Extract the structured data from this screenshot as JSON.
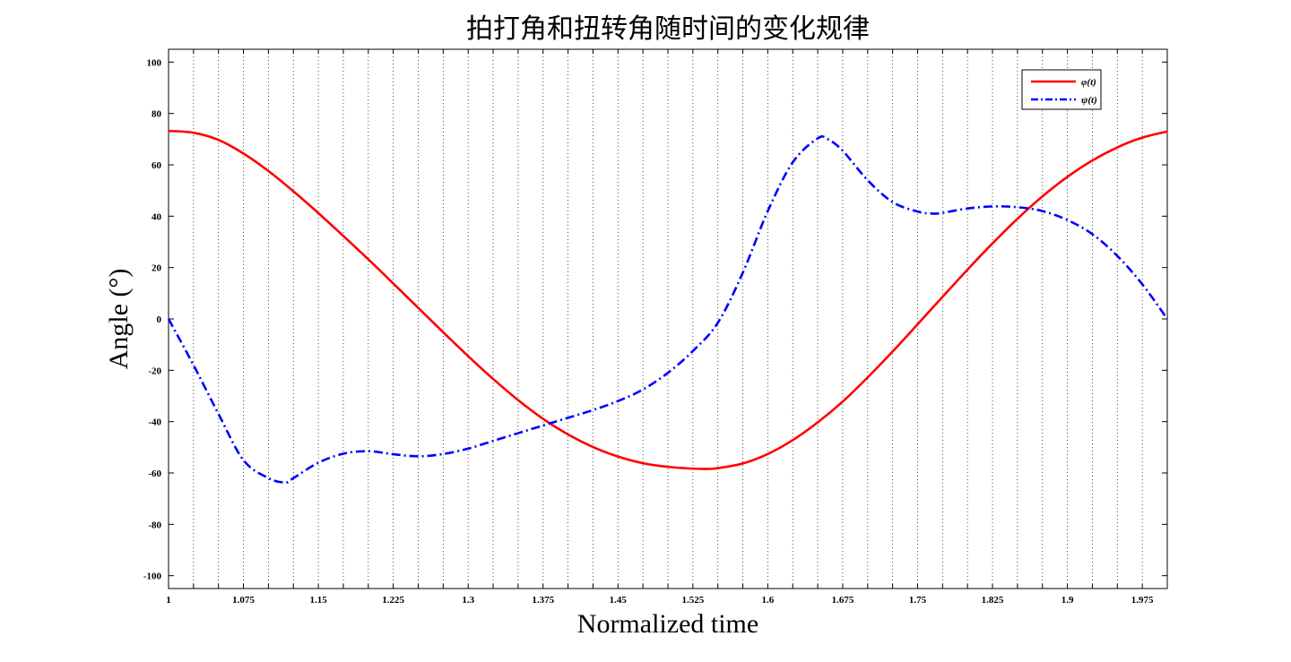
{
  "chart_data": {
    "type": "line",
    "title": "拍打角和扭转角随时间的变化规律",
    "xlabel": "Normalized time",
    "ylabel": "Angle (°)",
    "xlim": [
      1,
      2
    ],
    "ylim": [
      -105,
      105
    ],
    "x_ticks": [
      "1",
      "1.075",
      "1.15",
      "1.225",
      "1.3",
      "1.375",
      "1.45",
      "1.525",
      "1.6",
      "1.675",
      "1.75",
      "1.825",
      "1.9",
      "1.975"
    ],
    "y_ticks": [
      "100",
      "80",
      "60",
      "40",
      "20",
      "0",
      "-20",
      "-40",
      "-60",
      "-80",
      "-100"
    ],
    "grid": {
      "x": true,
      "y": false,
      "style": "dotted",
      "minor_x_step": 0.025
    },
    "legend": {
      "placement": "top-right"
    },
    "series": [
      {
        "name": "φ(t)",
        "color": "#ff0000",
        "dash": "solid",
        "x": [
          1,
          1.025,
          1.05,
          1.075,
          1.1,
          1.125,
          1.15,
          1.175,
          1.2,
          1.225,
          1.25,
          1.275,
          1.3,
          1.325,
          1.35,
          1.375,
          1.4,
          1.425,
          1.45,
          1.475,
          1.5,
          1.525,
          1.54,
          1.55,
          1.575,
          1.6,
          1.625,
          1.65,
          1.675,
          1.7,
          1.725,
          1.75,
          1.775,
          1.8,
          1.825,
          1.85,
          1.875,
          1.9,
          1.925,
          1.95,
          1.975,
          2
        ],
        "y": [
          73.2,
          72.5,
          69.7,
          64.4,
          57.6,
          49.7,
          41.2,
          32.3,
          23.2,
          13.8,
          4.3,
          -5.2,
          -14.5,
          -23.4,
          -31.6,
          -38.9,
          -45,
          -49.9,
          -53.6,
          -56.2,
          -57.6,
          -58.3,
          -58.4,
          -58.1,
          -56.3,
          -52.6,
          -47.2,
          -40.3,
          -32.2,
          -22.8,
          -12.7,
          -2.1,
          8.6,
          19.2,
          29.4,
          39,
          47.7,
          55.3,
          61.7,
          66.8,
          70.6,
          73
        ]
      },
      {
        "name": "ψ(t)",
        "color": "#0000ff",
        "dash": "dashdot",
        "x": [
          1,
          1.025,
          1.05,
          1.075,
          1.1,
          1.117,
          1.125,
          1.15,
          1.175,
          1.2,
          1.225,
          1.25,
          1.275,
          1.3,
          1.325,
          1.35,
          1.375,
          1.4,
          1.425,
          1.45,
          1.475,
          1.5,
          1.525,
          1.55,
          1.575,
          1.6,
          1.625,
          1.65,
          1.66,
          1.675,
          1.7,
          1.725,
          1.75,
          1.765,
          1.775,
          1.8,
          1.825,
          1.85,
          1.875,
          1.9,
          1.925,
          1.95,
          1.975,
          2
        ],
        "y": [
          0,
          -18,
          -37,
          -55,
          -62,
          -63.7,
          -62,
          -56,
          -52.5,
          -51.5,
          -52.7,
          -53.5,
          -52.6,
          -50.5,
          -47.5,
          -44.5,
          -41.5,
          -38.5,
          -35.5,
          -32,
          -27.5,
          -21,
          -12.5,
          -1.5,
          18,
          42,
          61,
          70.3,
          70,
          65.5,
          54,
          45.5,
          41.8,
          41,
          41.3,
          43,
          43.8,
          43.5,
          42,
          38.5,
          33,
          24.5,
          13.5,
          0
        ]
      }
    ]
  }
}
